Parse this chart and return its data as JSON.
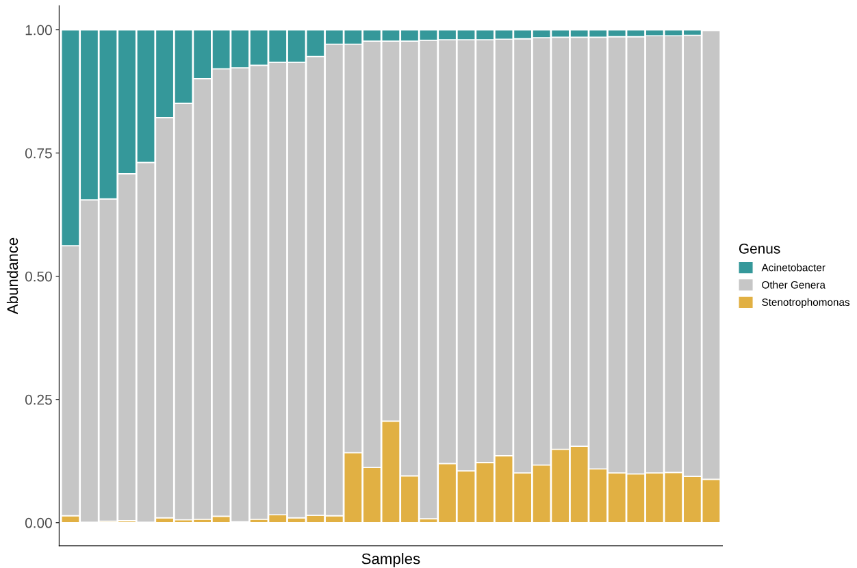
{
  "chart_data": {
    "type": "bar",
    "stacked": true,
    "xlabel": "Samples",
    "ylabel": "Abundance",
    "legend_title": "Genus",
    "legend": "right",
    "categories": [
      null,
      null,
      null,
      null,
      null,
      null,
      null,
      null,
      null,
      null,
      null,
      null,
      null,
      null,
      null,
      null,
      null,
      null,
      null,
      null,
      null,
      null,
      null,
      null,
      null,
      null,
      null,
      null,
      null,
      null,
      null,
      null,
      null,
      null,
      null
    ],
    "series": [
      {
        "name": "Stenotrophomonas",
        "color": "#e1b043",
        "values": [
          0.014,
          0.001,
          0.003,
          0.004,
          0.001,
          0.01,
          0.006,
          0.007,
          0.013,
          0.002,
          0.007,
          0.016,
          0.01,
          0.015,
          0.014,
          0.142,
          0.112,
          0.206,
          0.095,
          0.008,
          0.12,
          0.105,
          0.122,
          0.136,
          0.101,
          0.117,
          0.149,
          0.155,
          0.109,
          0.101,
          0.099,
          0.101,
          0.102,
          0.094,
          0.088
        ]
      },
      {
        "name": "Other Genera",
        "color": "#c6c6c6",
        "values": [
          0.548,
          0.654,
          0.654,
          0.704,
          0.73,
          0.812,
          0.845,
          0.894,
          0.908,
          0.921,
          0.921,
          0.918,
          0.924,
          0.931,
          0.957,
          0.829,
          0.865,
          0.771,
          0.882,
          0.971,
          0.86,
          0.875,
          0.858,
          0.845,
          0.881,
          0.867,
          0.836,
          0.83,
          0.876,
          0.885,
          0.887,
          0.887,
          0.886,
          0.895,
          0.911
        ]
      },
      {
        "name": "Acinetobacter",
        "color": "#35989a",
        "values": [
          0.438,
          0.345,
          0.343,
          0.292,
          0.269,
          0.178,
          0.149,
          0.099,
          0.079,
          0.077,
          0.072,
          0.066,
          0.066,
          0.054,
          0.029,
          0.029,
          0.023,
          0.023,
          0.023,
          0.021,
          0.02,
          0.02,
          0.02,
          0.019,
          0.018,
          0.016,
          0.015,
          0.015,
          0.015,
          0.014,
          0.014,
          0.012,
          0.012,
          0.011,
          0.001
        ]
      }
    ],
    "ylim": [
      -0.047,
      1.049
    ],
    "yticks": [
      {
        "value": 0,
        "label": "0.00"
      },
      {
        "value": 0.25,
        "label": "0.25"
      },
      {
        "value": 0.5,
        "label": "0.50"
      },
      {
        "value": 0.75,
        "label": "0.75"
      },
      {
        "value": 1,
        "label": "1.00"
      }
    ],
    "grid": false
  }
}
